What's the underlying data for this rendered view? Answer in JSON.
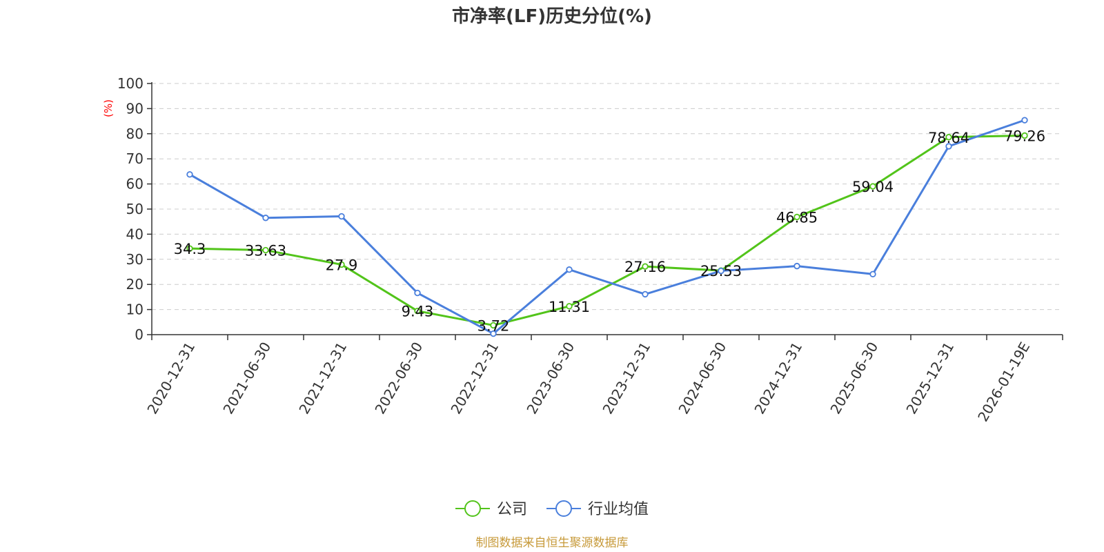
{
  "chart_data": {
    "type": "line",
    "title": "市净率(LF)历史分位(%)",
    "ylabel": "(%)",
    "xlabel": "",
    "categories": [
      "2020-12-31",
      "2021-06-30",
      "2021-12-31",
      "2022-06-30",
      "2022-12-31",
      "2023-06-30",
      "2023-12-31",
      "2024-06-30",
      "2024-12-31",
      "2025-06-30",
      "2025-12-31",
      "2026-01-19E"
    ],
    "ylim": [
      0,
      100
    ],
    "yticks": [
      0,
      10,
      20,
      30,
      40,
      50,
      60,
      70,
      80,
      90,
      100
    ],
    "grid": true,
    "legend_position": "bottom",
    "series": [
      {
        "name": "公司",
        "color": "#52c41a",
        "values": [
          34.3,
          33.63,
          27.9,
          9.43,
          3.72,
          11.31,
          27.16,
          25.53,
          46.85,
          59.04,
          78.64,
          79.26
        ],
        "labels": [
          "34.3",
          "33.63",
          "27.9",
          "9.43",
          "3.72",
          "11.31",
          "27.16",
          "25.53",
          "46.85",
          "59.04",
          "78.64",
          "79.26"
        ]
      },
      {
        "name": "行业均值",
        "color": "#4a7fdc",
        "values": [
          63.8,
          46.5,
          47.1,
          16.6,
          0.4,
          25.9,
          16.1,
          25.4,
          27.3,
          24.1,
          75.0,
          85.4
        ]
      }
    ]
  },
  "source": "制图数据来自恒生聚源数据库"
}
